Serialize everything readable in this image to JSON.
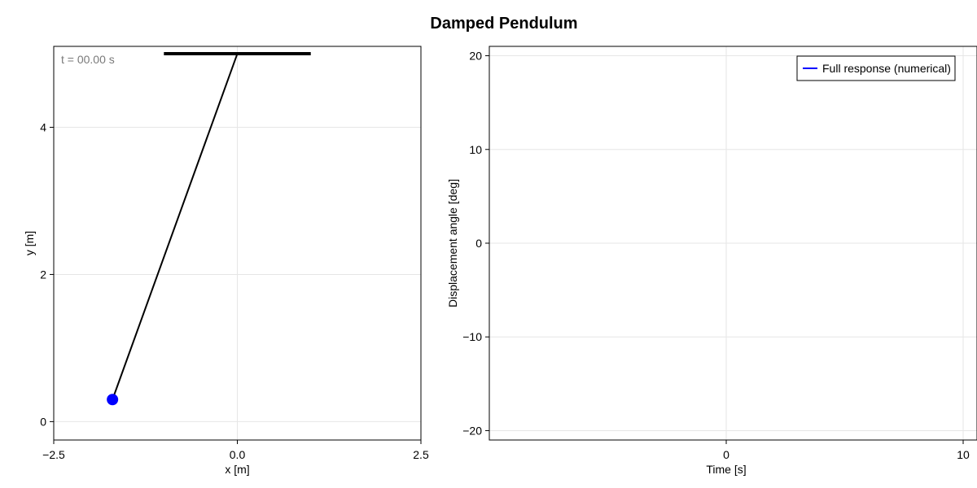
{
  "title": "Damped Pendulum",
  "chart_data": [
    {
      "type": "scatter",
      "title": "",
      "xlabel": "x [m]",
      "ylabel": "y [m]",
      "xlim": [
        -2.5,
        2.5
      ],
      "ylim": [
        -0.25,
        5.1
      ],
      "xticks": [
        -2.5,
        0.0,
        2.5
      ],
      "xtick_labels": [
        "−2.5",
        "0.0",
        "2.5"
      ],
      "yticks": [
        0,
        2,
        4
      ],
      "ytick_labels": [
        "0",
        "2",
        "4"
      ],
      "grid": true,
      "annotation": "t = 00.00 s",
      "support": {
        "x": [
          -1.0,
          1.0
        ],
        "y": 5.0
      },
      "pivot": {
        "x": 0.0,
        "y": 5.0
      },
      "bob": {
        "x": -1.7,
        "y": 0.3
      },
      "colors": {
        "rod": "#000000",
        "bob": "#0000ff",
        "support": "#000000"
      }
    },
    {
      "type": "line",
      "title": "",
      "xlabel": "Time [s]",
      "ylabel": "Displacement angle [deg]",
      "xlim": [
        -10,
        10
      ],
      "ylim": [
        -21,
        21
      ],
      "xticks": [
        0,
        10
      ],
      "xtick_labels": [
        "0",
        "10"
      ],
      "yticks": [
        -20,
        -10,
        0,
        10,
        20
      ],
      "ytick_labels": [
        "−20",
        "−10",
        "0",
        "10",
        "20"
      ],
      "grid": true,
      "legend_position": "top-right",
      "series": [
        {
          "name": "Full response (numerical)",
          "color": "#0000ff",
          "x": [],
          "y": []
        }
      ]
    }
  ]
}
